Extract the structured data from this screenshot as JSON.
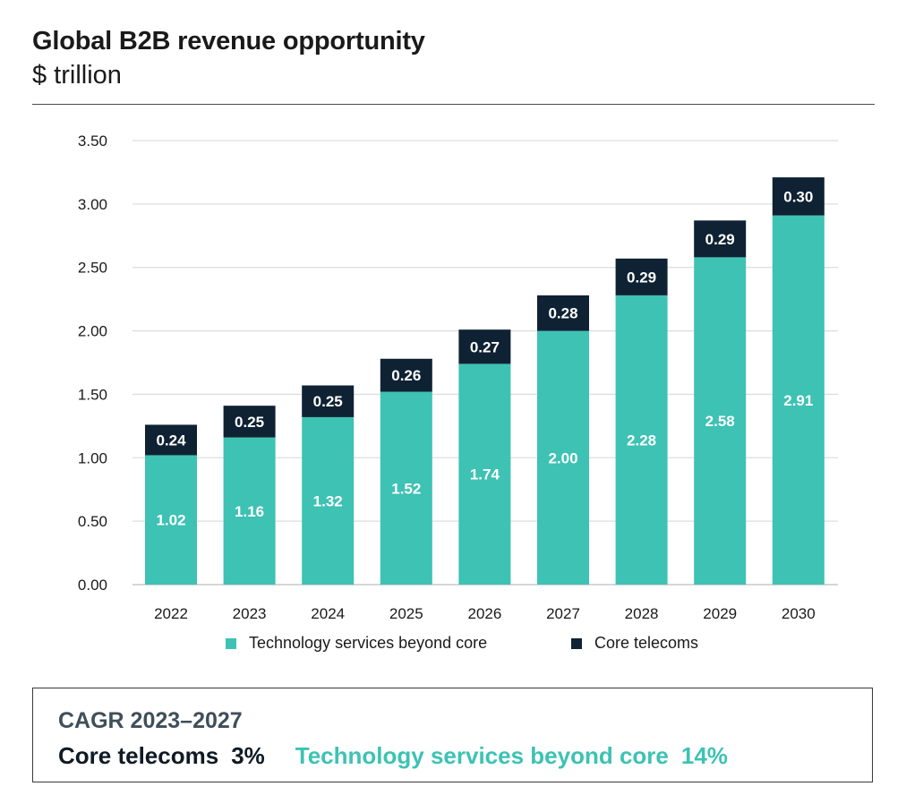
{
  "header": {
    "title": "Global B2B revenue opportunity",
    "subtitle": "$ trillion"
  },
  "chart_data": {
    "type": "bar",
    "stacked": true,
    "categories": [
      "2022",
      "2023",
      "2024",
      "2025",
      "2026",
      "2027",
      "2028",
      "2029",
      "2030"
    ],
    "series": [
      {
        "name": "Technology services beyond core",
        "color": "#3dc2b4",
        "values": [
          1.02,
          1.16,
          1.32,
          1.52,
          1.74,
          2.0,
          2.28,
          2.58,
          2.91
        ],
        "labels": [
          "1.02",
          "1.16",
          "1.32",
          "1.52",
          "1.74",
          "2.00",
          "2.28",
          "2.58",
          "2.91"
        ]
      },
      {
        "name": "Core telecoms",
        "color": "#0f2233",
        "values": [
          0.24,
          0.25,
          0.25,
          0.26,
          0.27,
          0.28,
          0.29,
          0.29,
          0.3
        ],
        "labels": [
          "0.24",
          "0.25",
          "0.25",
          "0.26",
          "0.27",
          "0.28",
          "0.29",
          "0.29",
          "0.30"
        ]
      }
    ],
    "ylim": [
      0,
      3.5
    ],
    "yticks": [
      "0.00",
      "0.50",
      "1.00",
      "1.50",
      "2.00",
      "2.50",
      "3.00",
      "3.50"
    ],
    "grid": true,
    "legend_position": "bottom"
  },
  "cagr": {
    "title": "CAGR 2023–2027",
    "core_label": "Core telecoms",
    "core_value": "3%",
    "tech_label": "Technology services beyond core",
    "tech_value": "14%",
    "tech_color": "#3dc2b4"
  }
}
